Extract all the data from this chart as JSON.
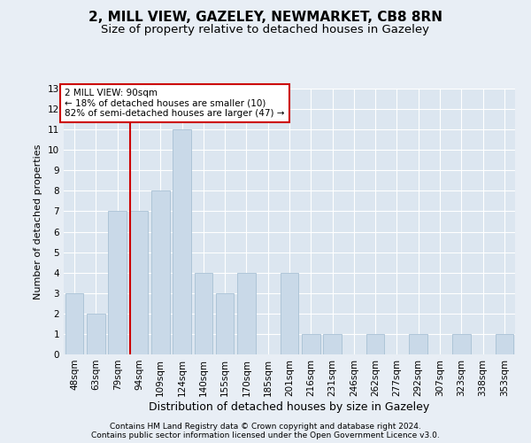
{
  "title1": "2, MILL VIEW, GAZELEY, NEWMARKET, CB8 8RN",
  "title2": "Size of property relative to detached houses in Gazeley",
  "xlabel": "Distribution of detached houses by size in Gazeley",
  "ylabel": "Number of detached properties",
  "categories": [
    "48sqm",
    "63sqm",
    "79sqm",
    "94sqm",
    "109sqm",
    "124sqm",
    "140sqm",
    "155sqm",
    "170sqm",
    "185sqm",
    "201sqm",
    "216sqm",
    "231sqm",
    "246sqm",
    "262sqm",
    "277sqm",
    "292sqm",
    "307sqm",
    "323sqm",
    "338sqm",
    "353sqm"
  ],
  "values": [
    3,
    2,
    7,
    7,
    8,
    11,
    4,
    3,
    4,
    0,
    4,
    1,
    1,
    0,
    1,
    0,
    1,
    0,
    1,
    0,
    1
  ],
  "bar_color": "#c9d9e8",
  "bar_edge_color": "#a8c0d4",
  "red_line_index": 3,
  "red_line_color": "#cc0000",
  "annotation_text": "2 MILL VIEW: 90sqm\n← 18% of detached houses are smaller (10)\n82% of semi-detached houses are larger (47) →",
  "annotation_box_color": "#ffffff",
  "annotation_box_edge": "#cc0000",
  "ylim": [
    0,
    13
  ],
  "yticks": [
    0,
    1,
    2,
    3,
    4,
    5,
    6,
    7,
    8,
    9,
    10,
    11,
    12,
    13
  ],
  "background_color": "#e8eef5",
  "plot_bg_color": "#dce6f0",
  "footer1": "Contains HM Land Registry data © Crown copyright and database right 2024.",
  "footer2": "Contains public sector information licensed under the Open Government Licence v3.0.",
  "title1_fontsize": 11,
  "title2_fontsize": 9.5,
  "xlabel_fontsize": 9,
  "ylabel_fontsize": 8,
  "tick_fontsize": 7.5,
  "footer_fontsize": 6.5
}
